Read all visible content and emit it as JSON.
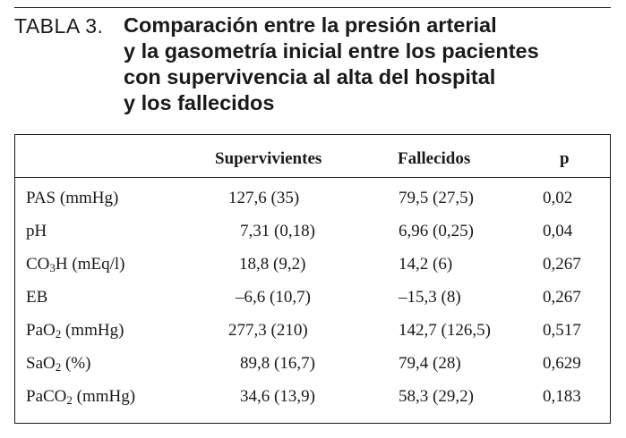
{
  "caption": {
    "label": "TABLA 3.",
    "title_lines": [
      "Comparación entre la presión arterial",
      "y la gasometría inicial entre los pacientes",
      "con supervivencia al alta del hospital",
      "y los fallecidos"
    ]
  },
  "table": {
    "headers": [
      "",
      "Supervivientes",
      "Fallecidos",
      "p"
    ],
    "rows": [
      {
        "label": "PAS (mmHg)",
        "label_base": "",
        "label_sub": "",
        "label_rest": "",
        "supervivientes": "127,6 (35)",
        "fallecidos": "79,5 (27,5)",
        "p": "0,02"
      },
      {
        "label": "pH",
        "label_base": "",
        "label_sub": "",
        "label_rest": "",
        "supervivientes": "7,31 (0,18)",
        "fallecidos": "6,96 (0,25)",
        "p": "0,04"
      },
      {
        "label": "",
        "label_base": "CO",
        "label_sub": "3",
        "label_rest": "H (mEq/l)",
        "supervivientes": "18,8 (9,2)",
        "fallecidos": "14,2 (6)",
        "p": "0,267"
      },
      {
        "label": "EB",
        "label_base": "",
        "label_sub": "",
        "label_rest": "",
        "supervivientes": "–6,6 (10,7)",
        "fallecidos": "–15,3 (8)",
        "p": "0,267"
      },
      {
        "label": "",
        "label_base": "PaO",
        "label_sub": "2",
        "label_rest": " (mmHg)",
        "supervivientes": "277,3 (210)",
        "fallecidos": "142,7 (126,5)",
        "p": "0,517"
      },
      {
        "label": "",
        "label_base": "SaO",
        "label_sub": "2",
        "label_rest": " (%)",
        "supervivientes": "89,8 (16,7)",
        "fallecidos": "79,4 (28)",
        "p": "0,629"
      },
      {
        "label": "",
        "label_base": "PaCO",
        "label_sub": "2",
        "label_rest": " (mmHg)",
        "supervivientes": "34,6 (13,9)",
        "fallecidos": "58,3 (29,2)",
        "p": "0,183"
      }
    ]
  }
}
